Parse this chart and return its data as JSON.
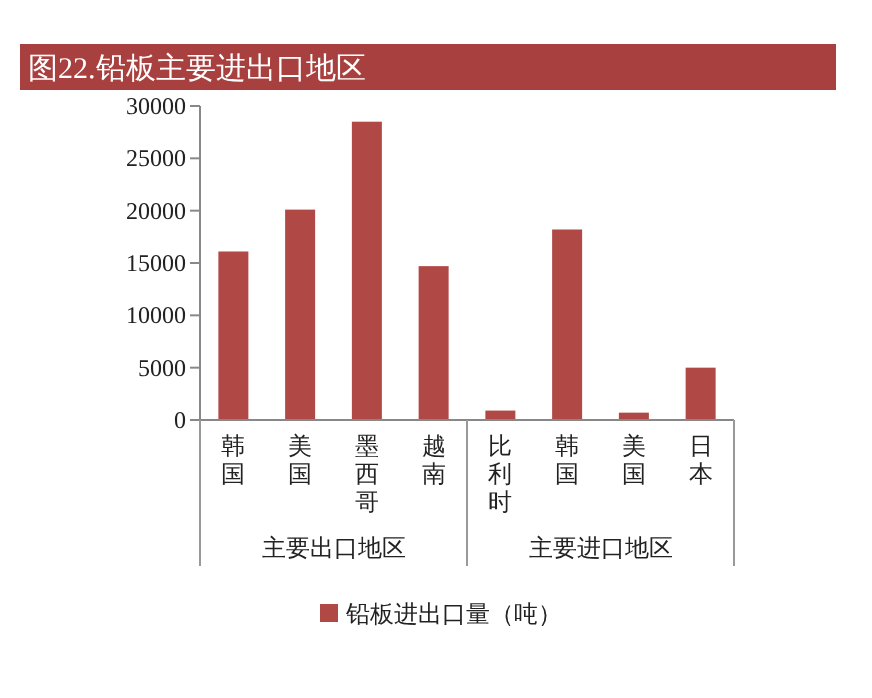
{
  "chart_data": {
    "type": "bar",
    "title": "图22.铅板主要进出口地区",
    "categories": [
      "韩国",
      "美国",
      "墨西哥",
      "越南",
      "比利时",
      "韩国",
      "美国",
      "日本"
    ],
    "series": [
      {
        "name": "铅板进出口量（吨）",
        "color": "#b04846",
        "values": [
          16100,
          20100,
          28500,
          14700,
          900,
          18200,
          700,
          5000
        ]
      }
    ],
    "ylim": [
      0,
      30000
    ],
    "yticks": [
      0,
      5000,
      10000,
      15000,
      20000,
      25000,
      30000
    ],
    "annotations": [
      "主要出口地区",
      "主要进口地区"
    ],
    "grid": false,
    "legend": "bottom"
  }
}
